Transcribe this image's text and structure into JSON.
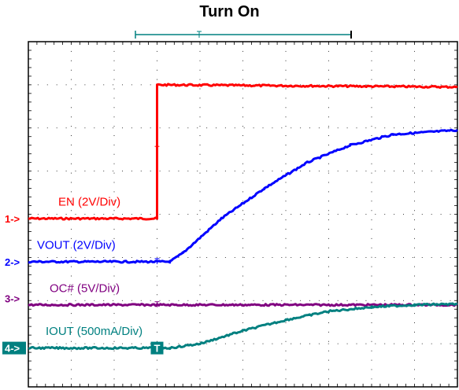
{
  "title": "Turn On",
  "chart_data": {
    "type": "line",
    "title": "Turn On",
    "x_divisions": 10,
    "y_divisions": 8,
    "colors": {
      "ch1": "#ff0000",
      "ch2": "#0000ff",
      "ch3": "#800080",
      "ch4": "#008080",
      "grid": "#000000"
    },
    "series": [
      {
        "name": "EN (2V/Div)",
        "channel_marker": "1->",
        "ground_div": 3.9,
        "points": [
          [
            0,
            3.9
          ],
          [
            3.0,
            3.9
          ],
          [
            3.0,
            7.0
          ],
          [
            10,
            6.95
          ]
        ]
      },
      {
        "name": "VOUT (2V/Div)",
        "channel_marker": "2->",
        "ground_div": 2.9,
        "points": [
          [
            0,
            2.9
          ],
          [
            3.3,
            2.9
          ],
          [
            3.6,
            3.1
          ],
          [
            4.5,
            3.9
          ],
          [
            5.5,
            4.6
          ],
          [
            6.5,
            5.2
          ],
          [
            7.5,
            5.6
          ],
          [
            8.5,
            5.85
          ],
          [
            10,
            5.95
          ]
        ]
      },
      {
        "name": "OC# (5V/Div)",
        "channel_marker": "",
        "ground_div": 1.9,
        "points": [
          [
            0,
            1.9
          ],
          [
            10,
            1.9
          ]
        ]
      },
      {
        "name": "IOUT (500mA/Div)",
        "channel_marker": "4->",
        "ground_div": 0.9,
        "points": [
          [
            0,
            0.9
          ],
          [
            3.3,
            0.9
          ],
          [
            4.0,
            1.0
          ],
          [
            5.0,
            1.3
          ],
          [
            6.0,
            1.55
          ],
          [
            7.0,
            1.75
          ],
          [
            8.0,
            1.85
          ],
          [
            9.0,
            1.9
          ],
          [
            10,
            1.92
          ]
        ]
      }
    ],
    "extra_markers": [
      {
        "text": "3->",
        "ground_div": 0.9
      }
    ],
    "trigger_marker": "T",
    "grid": true
  }
}
